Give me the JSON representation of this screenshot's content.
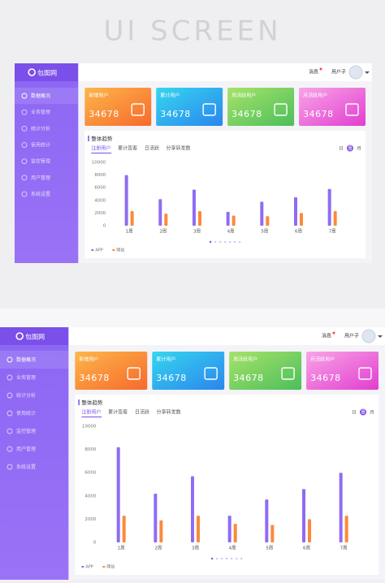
{
  "header": {
    "title": "UI SCREEN"
  },
  "screens": [
    {
      "logo": "包图网",
      "nav": [
        "数据概况",
        "业务管理",
        "统计分析",
        "使用统计",
        "监控管理",
        "用户管理",
        "系统设置"
      ],
      "topbar": {
        "message": "消息",
        "user": "用户子"
      },
      "cards": [
        {
          "label": "新增用户",
          "value": 34678
        },
        {
          "label": "累计用户",
          "value": 34678
        },
        {
          "label": "周活跃用户",
          "value": 34678
        },
        {
          "label": "月活跃用户",
          "value": 34678
        }
      ],
      "panel": {
        "title": "整体趋势",
        "tabs": [
          "注册用户",
          "累计签客",
          "日活跃",
          "分享转发数"
        ],
        "periods": [
          "日",
          "周",
          "月"
        ]
      },
      "chart": {
        "type": "bar",
        "categories": [
          "1周",
          "2周",
          "3周",
          "4周",
          "5周",
          "6周",
          "7周"
        ],
        "series": [
          {
            "name": "APP",
            "color": "#8f6cf3",
            "values": [
              8000,
              4200,
              5700,
              2200,
              3800,
              4500,
              5800
            ]
          },
          {
            "name": "网站",
            "color": "#fb8a3a",
            "values": [
              2300,
              1900,
              2300,
              1600,
              1500,
              2000,
              2300
            ]
          }
        ],
        "ylim": [
          0,
          10000
        ],
        "yticks": [
          0,
          2000,
          4000,
          6000,
          8000,
          10000
        ]
      }
    },
    {
      "logo": "包图网",
      "nav": [
        "数据概况",
        "业务管理",
        "统计分析",
        "使用统计",
        "监控管理",
        "用户管理",
        "系统设置"
      ],
      "topbar": {
        "message": "消息",
        "user": "用户子"
      },
      "cards": [
        {
          "label": "新增用户",
          "value": 34678
        },
        {
          "label": "累计用户",
          "value": 34678
        },
        {
          "label": "周活跃用户",
          "value": 34678
        },
        {
          "label": "月活跃用户",
          "value": 34678
        }
      ],
      "panel": {
        "title": "整体趋势",
        "tabs": [
          "注册用户",
          "累计签客",
          "日活跃",
          "分享转发数"
        ],
        "periods": [
          "日",
          "周",
          "月"
        ]
      },
      "chart": {
        "type": "bar",
        "categories": [
          "1周",
          "2周",
          "3周",
          "4周",
          "5周",
          "6周",
          "7周"
        ],
        "series": [
          {
            "name": "APP",
            "color": "#8f6cf3",
            "values": [
              8200,
              4200,
              5700,
              2300,
              3700,
              4600,
              6000
            ]
          },
          {
            "name": "网站",
            "color": "#fb8a3a",
            "values": [
              2300,
              1900,
              2300,
              1600,
              1500,
              2000,
              2300
            ]
          }
        ],
        "ylim": [
          0,
          10000
        ],
        "yticks": [
          0,
          2000,
          4000,
          6000,
          8000,
          10000
        ]
      }
    }
  ]
}
